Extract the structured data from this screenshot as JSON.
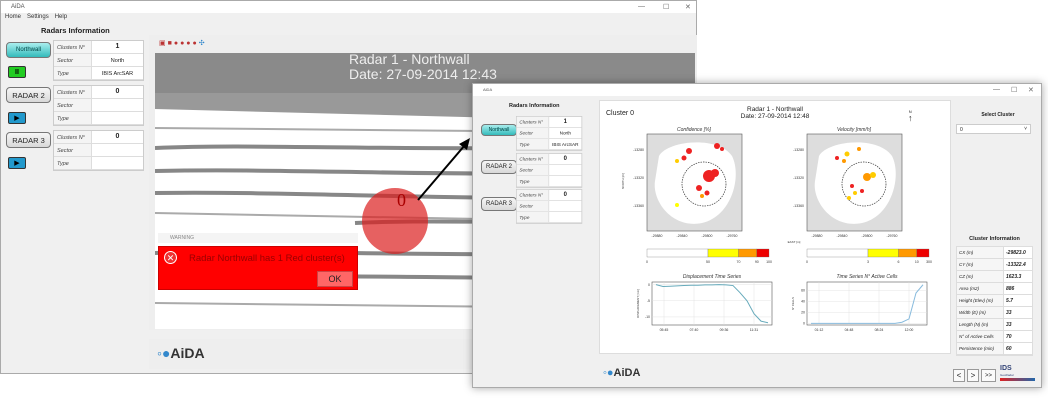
{
  "app_title": "AiDA",
  "menu": [
    "Home",
    "Settings",
    "Help"
  ],
  "radars_header": "Radars Information",
  "radars": [
    {
      "button": "Northwall",
      "control": "pause",
      "clusters_label": "Clusters N°",
      "clusters": "1",
      "sector_label": "Sector",
      "sector": "North",
      "type_label": "Type",
      "type": "IBIS ArcSAR"
    },
    {
      "button": "RADAR 2",
      "control": "play",
      "clusters_label": "Clusters N°",
      "clusters": "0",
      "sector_label": "Sector",
      "sector": "",
      "type_label": "Type",
      "type": ""
    },
    {
      "button": "RADAR 3",
      "control": "play",
      "clusters_label": "Clusters N°",
      "clusters": "0",
      "sector_label": "Sector",
      "sector": "",
      "type_label": "Type",
      "type": ""
    }
  ],
  "main_view": {
    "title": "Radar 1 - Northwall",
    "date": "Date: 27-09-2014 12:43",
    "cluster_marker": "0"
  },
  "warning": {
    "title": "WARNING",
    "message": "Radar Northwall has 1 Red cluster(s)",
    "ok": "OK"
  },
  "logo": "AiDA",
  "detail": {
    "cluster_label": "Cluster 0",
    "title": "Radar 1 - Northwall",
    "date": "Date: 27-09-2014 12:48",
    "north": "N",
    "confidence": {
      "title": "Confidence  [%]",
      "ylabel": "NORTH [m]",
      "yticks": [
        "-13280",
        "-13320",
        "-13360"
      ],
      "xticks": [
        "-29880",
        "-29840",
        "-29800",
        "-29760"
      ],
      "colorbar_ticks": [
        "0",
        "50",
        "70",
        "90",
        "100"
      ],
      "colorbar_colors": [
        "#ffffff",
        "#ffff00",
        "#ff9900",
        "#ee0000"
      ]
    },
    "velocity": {
      "title": "Velocity  [mm/h]",
      "xlabel": "EAST [m]",
      "yticks": [
        "-13280",
        "-13320",
        "-13360"
      ],
      "xticks": [
        "-29880",
        "-29840",
        "-29800",
        "-29760"
      ],
      "colorbar_ticks": [
        "0",
        "3",
        "6",
        "10",
        "300"
      ],
      "colorbar_colors": [
        "#ffffff",
        "#ffff00",
        "#ff9900",
        "#ee0000"
      ]
    },
    "displacement": {
      "title": "Displacement Time Series",
      "ylabel": "DISPLACEMENT [mm]",
      "yticks": [
        "0",
        "-5",
        "-10"
      ],
      "xticks": [
        "05:45",
        "07:40",
        "09:36",
        "11:31"
      ],
      "ylim": [
        -12.5,
        0.8
      ],
      "values": [
        0,
        -0.6,
        -0.5,
        -0.4,
        -0.3,
        -0.2,
        -0.2,
        -0.1,
        -0.1,
        0,
        -0.1,
        -0.3,
        -2.5,
        -5,
        -9,
        -11.3,
        -11.8
      ]
    },
    "active_cells": {
      "title": "Time Series N° Active Cells",
      "ylabel": "N° CELLS",
      "yticks": [
        "60",
        "40",
        "20",
        "0"
      ],
      "xticks": [
        "01:12",
        "04:48",
        "08:24",
        "12:00"
      ],
      "ylim": [
        -3,
        75
      ],
      "values": [
        0,
        0,
        0,
        0,
        0,
        0,
        0,
        0,
        0,
        0,
        0,
        0,
        0,
        2,
        8,
        55,
        70
      ]
    },
    "select_cluster_label": "Select Cluster",
    "select_cluster_value": "0",
    "cluster_info_header": "Cluster Information",
    "cluster_info": [
      {
        "k": "CX (m)",
        "v": "-29823.0"
      },
      {
        "k": "CY (m)",
        "v": "-13322.4"
      },
      {
        "k": "CZ (m)",
        "v": "1623.3"
      },
      {
        "k": "Area (m2)",
        "v": "886"
      },
      {
        "k": "Height (Elev) (m)",
        "v": "5.7"
      },
      {
        "k": "Width (E) (m)",
        "v": "33"
      },
      {
        "k": "Length (N) (m)",
        "v": "33"
      },
      {
        "k": "N° of Active Cells",
        "v": "70"
      },
      {
        "k": "Persistence (min)",
        "v": "60"
      }
    ],
    "nav": [
      "<",
      ">",
      ">>"
    ],
    "partner_logo": "IDS GeoRadar"
  }
}
